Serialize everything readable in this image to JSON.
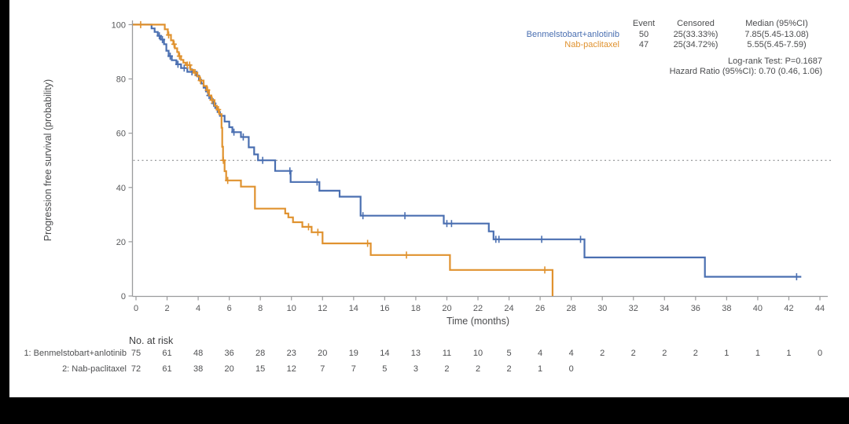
{
  "legend": {
    "columns": [
      "Event",
      "Censored",
      "Median (95%CI)"
    ],
    "rows": [
      {
        "name": "Benmelstobart+anlotinib",
        "event": "50",
        "censored": "25(33.33%)",
        "median": "7.85(5.45-13.08)",
        "color": "#4a6fb1"
      },
      {
        "name": "Nab-paclitaxel",
        "event": "47",
        "censored": "25(34.72%)",
        "median": "5.55(5.45-7.59)",
        "color": "#e0922f"
      }
    ],
    "logrank": "Log-rank Test: P=0.1687",
    "hazard_ratio": "Hazard Ratio (95%CI): 0.70 (0.46, 1.06)"
  },
  "chart_data": {
    "type": "line",
    "subtype": "kaplan-meier-step",
    "title": "",
    "xlabel": "Time (months)",
    "ylabel": "Progression free survival (probability)",
    "xlim": [
      0,
      44
    ],
    "ylim": [
      0,
      100
    ],
    "xticks": [
      0,
      2,
      4,
      6,
      8,
      10,
      12,
      14,
      16,
      18,
      20,
      22,
      24,
      26,
      28,
      30,
      32,
      34,
      36,
      38,
      40,
      42,
      44
    ],
    "yticks": [
      0,
      20,
      40,
      60,
      80,
      100
    ],
    "grid": false,
    "reference_line_y": 50,
    "axis_color": "#9a9b9d",
    "series": [
      {
        "name": "Benmelstobart+anlotinib",
        "color": "#4a6fb1",
        "median_months": 7.85,
        "end_month": 42.8,
        "steps": [
          [
            0,
            100
          ],
          [
            1.0,
            98.6
          ],
          [
            1.2,
            97.3
          ],
          [
            1.4,
            95.9
          ],
          [
            1.6,
            94.5
          ],
          [
            1.8,
            92.8
          ],
          [
            1.95,
            90.4
          ],
          [
            2.1,
            88.4
          ],
          [
            2.3,
            86.9
          ],
          [
            2.6,
            85.4
          ],
          [
            2.9,
            84.0
          ],
          [
            3.3,
            82.6
          ],
          [
            3.9,
            81.2
          ],
          [
            4.05,
            79.7
          ],
          [
            4.2,
            78.3
          ],
          [
            4.35,
            76.8
          ],
          [
            4.5,
            75.4
          ],
          [
            4.65,
            73.9
          ],
          [
            4.8,
            72.5
          ],
          [
            4.95,
            71.0
          ],
          [
            5.1,
            69.3
          ],
          [
            5.25,
            67.8
          ],
          [
            5.4,
            66.4
          ],
          [
            5.7,
            64.3
          ],
          [
            6.0,
            62.2
          ],
          [
            6.2,
            60.4
          ],
          [
            6.75,
            58.6
          ],
          [
            7.25,
            54.8
          ],
          [
            7.6,
            52.2
          ],
          [
            7.85,
            50.0
          ],
          [
            8.95,
            46.1
          ],
          [
            9.95,
            42.0
          ],
          [
            11.8,
            38.8
          ],
          [
            13.1,
            36.6
          ],
          [
            14.45,
            29.6
          ],
          [
            19.8,
            26.7
          ],
          [
            22.7,
            23.8
          ],
          [
            23.0,
            20.9
          ],
          [
            28.85,
            14.2
          ],
          [
            36.6,
            7.1
          ]
        ],
        "censors": [
          [
            1.5,
            95.9
          ],
          [
            1.7,
            94.5
          ],
          [
            2.2,
            88.4
          ],
          [
            2.7,
            85.4
          ],
          [
            3.1,
            84.0
          ],
          [
            3.6,
            82.6
          ],
          [
            4.7,
            73.9
          ],
          [
            5.0,
            71.0
          ],
          [
            6.3,
            60.4
          ],
          [
            6.9,
            58.6
          ],
          [
            8.15,
            50.0
          ],
          [
            9.9,
            46.1
          ],
          [
            11.65,
            42.0
          ],
          [
            14.6,
            29.6
          ],
          [
            17.3,
            29.6
          ],
          [
            20.0,
            26.7
          ],
          [
            20.3,
            26.7
          ],
          [
            23.15,
            20.9
          ],
          [
            23.35,
            20.9
          ],
          [
            26.1,
            20.9
          ],
          [
            28.6,
            20.9
          ],
          [
            42.5,
            7.1
          ]
        ]
      },
      {
        "name": "Nab-paclitaxel",
        "color": "#e0922f",
        "median_months": 5.55,
        "end_month": 26.8,
        "steps": [
          [
            0,
            100
          ],
          [
            1.85,
            98.3
          ],
          [
            2.05,
            96.2
          ],
          [
            2.25,
            94.2
          ],
          [
            2.4,
            92.8
          ],
          [
            2.5,
            91.3
          ],
          [
            2.65,
            89.9
          ],
          [
            2.75,
            88.4
          ],
          [
            2.9,
            87.0
          ],
          [
            3.05,
            86.0
          ],
          [
            3.2,
            85.1
          ],
          [
            3.5,
            83.4
          ],
          [
            3.7,
            82.3
          ],
          [
            3.95,
            80.9
          ],
          [
            4.1,
            79.4
          ],
          [
            4.35,
            77.4
          ],
          [
            4.55,
            75.9
          ],
          [
            4.7,
            73.9
          ],
          [
            4.85,
            72.2
          ],
          [
            5.05,
            70.1
          ],
          [
            5.2,
            68.7
          ],
          [
            5.35,
            67.0
          ],
          [
            5.5,
            62.0
          ],
          [
            5.55,
            55.0
          ],
          [
            5.6,
            50.0
          ],
          [
            5.7,
            46.0
          ],
          [
            5.8,
            42.6
          ],
          [
            6.75,
            40.3
          ],
          [
            7.65,
            32.2
          ],
          [
            9.6,
            30.4
          ],
          [
            9.8,
            29.0
          ],
          [
            10.1,
            27.2
          ],
          [
            10.7,
            25.5
          ],
          [
            11.3,
            23.5
          ],
          [
            12.0,
            19.4
          ],
          [
            15.1,
            15.1
          ],
          [
            20.2,
            9.6
          ],
          [
            26.8,
            0
          ]
        ],
        "censors": [
          [
            0.3,
            100
          ],
          [
            2.1,
            96.2
          ],
          [
            2.45,
            92.8
          ],
          [
            2.8,
            88.4
          ],
          [
            3.3,
            85.1
          ],
          [
            3.45,
            85.1
          ],
          [
            3.8,
            82.3
          ],
          [
            4.15,
            79.4
          ],
          [
            4.6,
            75.9
          ],
          [
            4.9,
            72.2
          ],
          [
            5.3,
            68.7
          ],
          [
            5.62,
            50.0
          ],
          [
            5.9,
            42.6
          ],
          [
            11.1,
            25.5
          ],
          [
            11.7,
            23.5
          ],
          [
            14.9,
            19.4
          ],
          [
            17.4,
            15.1
          ],
          [
            26.3,
            9.6
          ]
        ]
      }
    ],
    "risk_table": {
      "title": "No. at risk",
      "interval": 2,
      "rows": [
        {
          "label": "1: Benmelstobart+anlotinib",
          "values": [
            75,
            61,
            48,
            36,
            28,
            23,
            20,
            19,
            14,
            13,
            11,
            10,
            5,
            4,
            4,
            2,
            2,
            2,
            2,
            1,
            1,
            1,
            0
          ]
        },
        {
          "label": "2: Nab-paclitaxel",
          "values": [
            72,
            61,
            38,
            20,
            15,
            12,
            7,
            7,
            5,
            3,
            2,
            2,
            2,
            1,
            0
          ]
        }
      ]
    }
  }
}
